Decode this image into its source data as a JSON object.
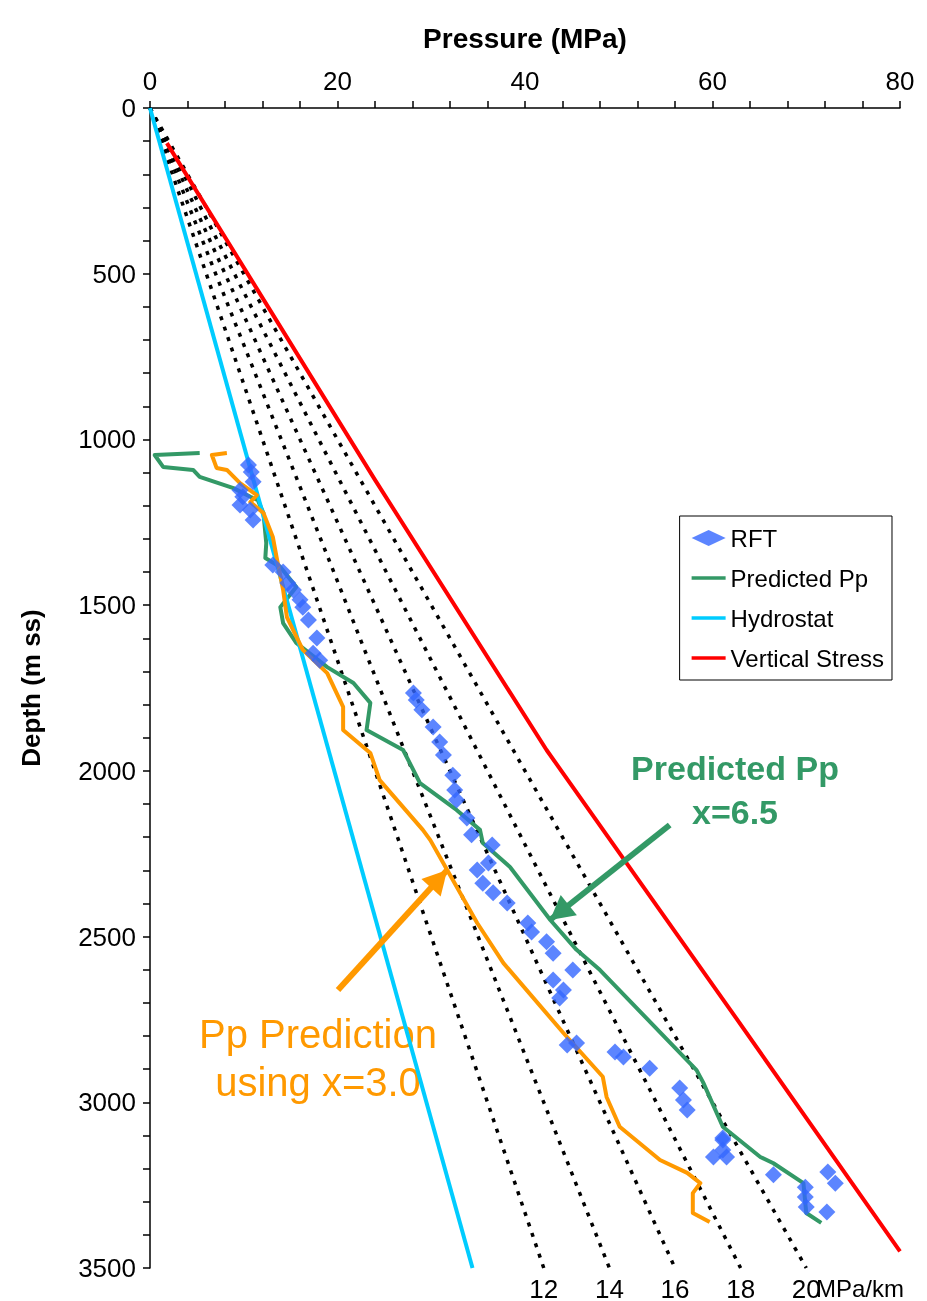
{
  "chart_data": {
    "type": "line",
    "xlabel": "Pressure (MPa)",
    "ylabel": "Depth (m ss)",
    "xlim": [
      0,
      80
    ],
    "ylim": [
      3500,
      0
    ],
    "xticks": [
      0,
      {
        "value": 4,
        "label": null
      },
      {
        "value": 8,
        "label": null
      },
      {
        "value": 12,
        "label": null
      },
      {
        "value": 16,
        "label": null
      },
      20,
      {
        "value": 24,
        "label": null
      },
      {
        "value": 28,
        "label": null
      },
      {
        "value": 32,
        "label": null
      },
      {
        "value": 36,
        "label": null
      },
      40,
      {
        "value": 44,
        "label": null
      },
      {
        "value": 48,
        "label": null
      },
      {
        "value": 52,
        "label": null
      },
      {
        "value": 56,
        "label": null
      },
      60,
      {
        "value": 64,
        "label": null
      },
      {
        "value": 68,
        "label": null
      },
      {
        "value": 72,
        "label": null
      },
      {
        "value": 76,
        "label": null
      },
      80
    ],
    "yticks": [
      0,
      {
        "value": 100,
        "label": null
      },
      {
        "value": 200,
        "label": null
      },
      {
        "value": 300,
        "label": null
      },
      {
        "value": 400,
        "label": null
      },
      500,
      {
        "value": 600,
        "label": null
      },
      {
        "value": 700,
        "label": null
      },
      {
        "value": 800,
        "label": null
      },
      {
        "value": 900,
        "label": null
      },
      1000,
      {
        "value": 1100,
        "label": null
      },
      {
        "value": 1200,
        "label": null
      },
      {
        "value": 1300,
        "label": null
      },
      {
        "value": 1400,
        "label": null
      },
      1500,
      {
        "value": 1600,
        "label": null
      },
      {
        "value": 1700,
        "label": null
      },
      {
        "value": 1800,
        "label": null
      },
      {
        "value": 1900,
        "label": null
      },
      2000,
      {
        "value": 2100,
        "label": null
      },
      {
        "value": 2200,
        "label": null
      },
      {
        "value": 2300,
        "label": null
      },
      {
        "value": 2400,
        "label": null
      },
      2500,
      {
        "value": 2600,
        "label": null
      },
      {
        "value": 2700,
        "label": null
      },
      {
        "value": 2800,
        "label": null
      },
      {
        "value": 2900,
        "label": null
      },
      3000,
      {
        "value": 3100,
        "label": null
      },
      {
        "value": 3200,
        "label": null
      },
      {
        "value": 3300,
        "label": null
      },
      {
        "value": 3400,
        "label": null
      },
      3500
    ],
    "grid": false,
    "legend": "right",
    "marker": "none",
    "series": [
      {
        "name": "RFT",
        "type": "scatter",
        "marker": "diamond",
        "color": "#3366ff",
        "x": [
          10.5,
          10.8,
          11.0,
          9.6,
          9.9,
          9.6,
          10.7,
          11.0,
          13.1,
          14.2,
          14.7,
          15.3,
          16.0,
          16.3,
          16.9,
          17.8,
          17.4,
          18.1,
          28.1,
          28.4,
          29.0,
          30.2,
          30.9,
          31.3,
          32.3,
          32.5,
          32.7,
          33.8,
          34.3,
          36.5,
          36.1,
          34.9,
          35.5,
          36.6,
          38.1,
          40.3,
          40.7,
          42.3,
          43.0,
          45.1,
          43.0,
          44.1,
          43.7,
          44.5,
          45.5,
          49.6,
          50.5,
          53.3,
          56.5,
          56.9,
          57.3,
          61.1,
          61.1,
          61.1,
          60.1,
          61.5,
          66.5,
          69.9,
          69.9,
          70.0,
          72.3,
          73.1,
          72.2
        ],
        "values": [
          1077,
          1098,
          1128,
          1153,
          1173,
          1198,
          1213,
          1243,
          1379,
          1400,
          1433,
          1454,
          1484,
          1506,
          1545,
          1599,
          1645,
          1666,
          1765,
          1786,
          1816,
          1868,
          1913,
          1952,
          2013,
          2058,
          2088,
          2142,
          2193,
          2224,
          2278,
          2299,
          2339,
          2368,
          2399,
          2459,
          2486,
          2516,
          2550,
          2601,
          2631,
          2661,
          2685,
          2827,
          2821,
          2848,
          2863,
          2897,
          2957,
          2993,
          3023,
          3108,
          3114,
          3144,
          3165,
          3165,
          3219,
          3256,
          3286,
          3316,
          3210,
          3244,
          3331
        ]
      },
      {
        "name": "Predicted Pp",
        "color": "#339966",
        "x": [
          5.3,
          0.5,
          1.4,
          4.6,
          5.3,
          8.9,
          10.7,
          11.5,
          12.1,
          12.4,
          12.3,
          13.9,
          15.6,
          13.9,
          14.2,
          15.6,
          18.9,
          21.7,
          23.5,
          23.1,
          27.0,
          27.7,
          28.8,
          32.7,
          35.2,
          35.5,
          38.4,
          42.7,
          45.5,
          48.0,
          58.3,
          59.0,
          61.1,
          65.1,
          66.5,
          69.7,
          70.0,
          71.6
        ],
        "values": [
          1041,
          1047,
          1083,
          1092,
          1113,
          1147,
          1173,
          1183,
          1222,
          1313,
          1358,
          1385,
          1445,
          1506,
          1554,
          1614,
          1687,
          1735,
          1795,
          1877,
          1937,
          1976,
          2037,
          2118,
          2178,
          2218,
          2290,
          2450,
          2540,
          2601,
          2903,
          2940,
          3074,
          3165,
          3184,
          3244,
          3334,
          3364
        ]
      },
      {
        "name": "Hydrostat",
        "color": "#00ccff",
        "x": [
          0,
          34.4
        ],
        "values": [
          0,
          3500
        ]
      },
      {
        "name": "Vertical Stress",
        "color": "#ff0000",
        "x": [
          1.8,
          24,
          42.3,
          61.9,
          80
        ],
        "values": [
          106,
          1122,
          1937,
          2721,
          3450
        ]
      },
      {
        "color": "#ff9900",
        "x": [
          8.2,
          6.6,
          7.1,
          8.2,
          9.6,
          11.4,
          10.7,
          12.1,
          13.1,
          13.5,
          14.2,
          14.6,
          16.3,
          18.9,
          20.6,
          20.6,
          23.5,
          24.5,
          29.1,
          29.9,
          31.7,
          34.9,
          37.7,
          44.1,
          48.3,
          48.7,
          50.1,
          54.4,
          57.3,
          58.7,
          57.9,
          57.9,
          59.7
        ],
        "values": [
          1041,
          1047,
          1086,
          1092,
          1132,
          1168,
          1189,
          1222,
          1294,
          1355,
          1454,
          1536,
          1635,
          1705,
          1807,
          1877,
          1946,
          2028,
          2178,
          2209,
          2299,
          2459,
          2580,
          2791,
          2923,
          2984,
          3074,
          3174,
          3213,
          3244,
          3274,
          3334,
          3361
        ]
      },
      {
        "color": "#000000",
        "line_style": "dotted",
        "x": [
          0,
          42
        ],
        "values": [
          0,
          3500
        ]
      },
      {
        "color": "#000000",
        "line_style": "dotted",
        "x": [
          0,
          49
        ],
        "values": [
          0,
          3500
        ]
      },
      {
        "color": "#000000",
        "line_style": "dotted",
        "x": [
          0,
          56
        ],
        "values": [
          0,
          3500
        ]
      },
      {
        "color": "#000000",
        "line_style": "dotted",
        "x": [
          0,
          63
        ],
        "values": [
          0,
          3500
        ]
      },
      {
        "color": "#000000",
        "line_style": "dotted",
        "x": [
          0,
          70
        ],
        "values": [
          0,
          3500
        ]
      }
    ],
    "annotations": [
      {
        "text": "Predicted Pp\nx=6.5",
        "x": 42.7,
        "y": 2450
      },
      {
        "text": "Pp Prediction\nusing x=3.0",
        "x": 31.7,
        "y": 2299
      },
      {
        "text": "12",
        "x": 42,
        "y": 3500
      },
      {
        "text": "14",
        "x": 49,
        "y": 3500
      },
      {
        "text": "16",
        "x": 56,
        "y": 3500
      },
      {
        "text": "18",
        "x": 63,
        "y": 3500
      },
      {
        "text": "20",
        "x": 70,
        "y": 3500
      },
      "MPa/km"
    ]
  }
}
